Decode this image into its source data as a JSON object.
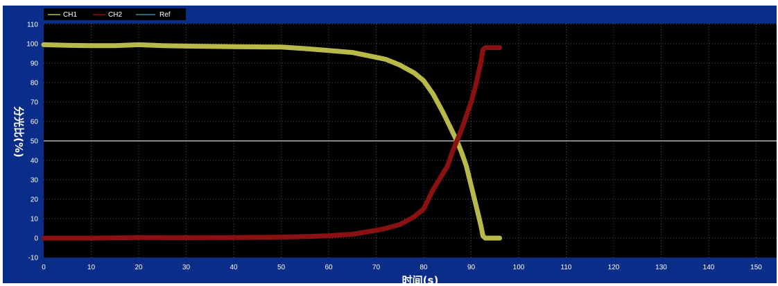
{
  "chart_data": {
    "type": "line",
    "title": "",
    "xlabel": "时间(s)",
    "ylabel": "分光比(%)",
    "xlim": [
      0,
      155
    ],
    "ylim": [
      -10,
      110
    ],
    "x_ticks": [
      "0",
      "10",
      "20",
      "30",
      "40",
      "50",
      "60",
      "70",
      "80",
      "90",
      "100",
      "110",
      "120",
      "130",
      "140",
      "150"
    ],
    "y_ticks": [
      "110",
      "100",
      "90",
      "80",
      "70",
      "60",
      "50",
      "40",
      "30",
      "20",
      "10",
      "0",
      "-10"
    ],
    "grid": true,
    "legend_position": "top-left",
    "reference_line_y": 50,
    "series": [
      {
        "name": "CH1",
        "color": "#b9b94a",
        "points": [
          [
            0,
            99.5
          ],
          [
            5,
            99.2
          ],
          [
            10,
            99
          ],
          [
            15,
            99
          ],
          [
            20,
            99.5
          ],
          [
            25,
            99
          ],
          [
            30,
            98.8
          ],
          [
            40,
            98.5
          ],
          [
            50,
            98.3
          ],
          [
            55,
            97.5
          ],
          [
            60,
            96.5
          ],
          [
            65,
            95.5
          ],
          [
            70,
            93
          ],
          [
            72,
            92
          ],
          [
            75,
            89
          ],
          [
            78,
            85
          ],
          [
            80,
            81
          ],
          [
            82,
            74
          ],
          [
            84,
            65
          ],
          [
            85,
            60
          ],
          [
            86,
            55
          ],
          [
            87,
            50
          ],
          [
            88,
            44
          ],
          [
            89,
            37
          ],
          [
            90,
            27
          ],
          [
            91,
            17
          ],
          [
            92,
            7
          ],
          [
            92.5,
            1
          ],
          [
            93,
            0
          ],
          [
            95,
            0
          ],
          [
            96,
            0
          ]
        ]
      },
      {
        "name": "CH2",
        "color": "#8a1111",
        "points": [
          [
            0,
            0
          ],
          [
            10,
            0
          ],
          [
            20,
            0.3
          ],
          [
            30,
            0.2
          ],
          [
            40,
            0.3
          ],
          [
            50,
            0.5
          ],
          [
            55,
            0.8
          ],
          [
            60,
            1.2
          ],
          [
            65,
            2
          ],
          [
            70,
            4
          ],
          [
            72,
            5
          ],
          [
            75,
            7
          ],
          [
            78,
            11
          ],
          [
            80,
            15
          ],
          [
            82,
            25
          ],
          [
            84,
            33
          ],
          [
            85,
            37
          ],
          [
            86,
            44
          ],
          [
            87,
            50
          ],
          [
            88,
            56
          ],
          [
            89,
            63
          ],
          [
            90,
            70
          ],
          [
            91,
            79
          ],
          [
            92,
            90
          ],
          [
            92.5,
            97
          ],
          [
            93,
            98
          ],
          [
            95,
            98
          ],
          [
            96,
            98
          ]
        ]
      },
      {
        "name": "Ref",
        "color": "#3a8a9a",
        "points": []
      }
    ]
  }
}
